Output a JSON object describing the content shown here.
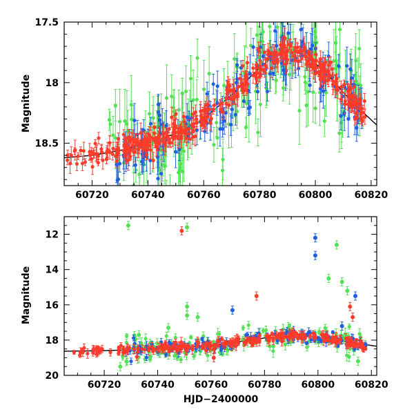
{
  "chart_data": [
    {
      "type": "scatter",
      "panel": "top",
      "xlabel": "",
      "ylabel": "Magnitude",
      "xlim": [
        60710,
        60822
      ],
      "ylim": [
        18.85,
        17.5
      ],
      "y_inverted": true,
      "x_ticks": [
        "60720",
        "60740",
        "60760",
        "60780",
        "60800",
        "60820"
      ],
      "y_ticks": [
        "17.5",
        "18",
        "18.5"
      ],
      "colors": {
        "g": "#55e055",
        "r": "#ff3b2b",
        "b": "#1f5fe0",
        "model": "#000000"
      },
      "model_curve": {
        "x": [
          60710,
          60720,
          60730,
          60740,
          60750,
          60760,
          60770,
          60780,
          60785,
          60790,
          60795,
          60800,
          60805,
          60810,
          60815,
          60822
        ],
        "y": [
          18.62,
          18.6,
          18.56,
          18.5,
          18.42,
          18.3,
          18.1,
          17.88,
          17.78,
          17.74,
          17.76,
          17.84,
          17.95,
          18.08,
          18.2,
          18.35
        ]
      },
      "series": [
        {
          "color_key": "r",
          "x_range": [
            60711,
            60818
          ],
          "scatter": 0.05,
          "err": 0.06,
          "n": 420
        },
        {
          "color_key": "b",
          "x_range": [
            60728,
            60818
          ],
          "scatter": 0.12,
          "err": 0.12,
          "n": 170
        },
        {
          "color_key": "g",
          "x_range": [
            60726,
            60818
          ],
          "scatter": 0.22,
          "err": 0.2,
          "n": 190
        }
      ]
    },
    {
      "type": "scatter",
      "panel": "bottom",
      "xlabel": "HJD−2400000",
      "ylabel": "Magnitude",
      "xlim": [
        60705,
        60822
      ],
      "ylim": [
        20,
        11
      ],
      "y_inverted": true,
      "x_ticks": [
        "60720",
        "60740",
        "60760",
        "60780",
        "60800",
        "60820"
      ],
      "y_ticks": [
        "12",
        "14",
        "16",
        "18",
        "20"
      ],
      "model_curve": {
        "x": [
          60705,
          60720,
          60740,
          60760,
          60780,
          60790,
          60800,
          60810,
          60822
        ],
        "y": [
          18.63,
          18.6,
          18.5,
          18.3,
          17.88,
          17.74,
          17.84,
          18.08,
          18.35
        ]
      },
      "series": [
        {
          "color_key": "r",
          "x_range": [
            60707,
            60818
          ],
          "scatter": 0.12,
          "err": 0.2,
          "n": 260
        },
        {
          "color_key": "b",
          "x_range": [
            60728,
            60818
          ],
          "scatter": 0.2,
          "err": 0.2,
          "n": 140
        },
        {
          "color_key": "g",
          "x_range": [
            60726,
            60818
          ],
          "scatter": 0.35,
          "err": 0.25,
          "n": 150
        }
      ],
      "outliers": [
        {
          "x": 60729,
          "y": 11.5,
          "c": "g"
        },
        {
          "x": 60749,
          "y": 11.8,
          "c": "r"
        },
        {
          "x": 60751,
          "y": 11.6,
          "c": "g"
        },
        {
          "x": 60751,
          "y": 16.1,
          "c": "g"
        },
        {
          "x": 60751,
          "y": 16.6,
          "c": "g"
        },
        {
          "x": 60755,
          "y": 16.7,
          "c": "g"
        },
        {
          "x": 60768,
          "y": 16.3,
          "c": "b"
        },
        {
          "x": 60777,
          "y": 15.5,
          "c": "r"
        },
        {
          "x": 60799,
          "y": 12.2,
          "c": "b"
        },
        {
          "x": 60799,
          "y": 13.2,
          "c": "b"
        },
        {
          "x": 60807,
          "y": 12.6,
          "c": "g"
        },
        {
          "x": 60804,
          "y": 14.5,
          "c": "g"
        },
        {
          "x": 60809,
          "y": 14.7,
          "c": "g"
        },
        {
          "x": 60811,
          "y": 15.2,
          "c": "g"
        },
        {
          "x": 60814,
          "y": 15.5,
          "c": "b"
        },
        {
          "x": 60812,
          "y": 16.1,
          "c": "r"
        },
        {
          "x": 60813,
          "y": 16.7,
          "c": "r"
        },
        {
          "x": 60744,
          "y": 17.3,
          "c": "g"
        },
        {
          "x": 60733,
          "y": 17.7,
          "c": "g"
        },
        {
          "x": 60809,
          "y": 17.2,
          "c": "b"
        },
        {
          "x": 60726,
          "y": 19.5,
          "c": "g"
        },
        {
          "x": 60761,
          "y": 19.0,
          "c": "r"
        },
        {
          "x": 60815,
          "y": 19.2,
          "c": "g"
        }
      ]
    }
  ]
}
